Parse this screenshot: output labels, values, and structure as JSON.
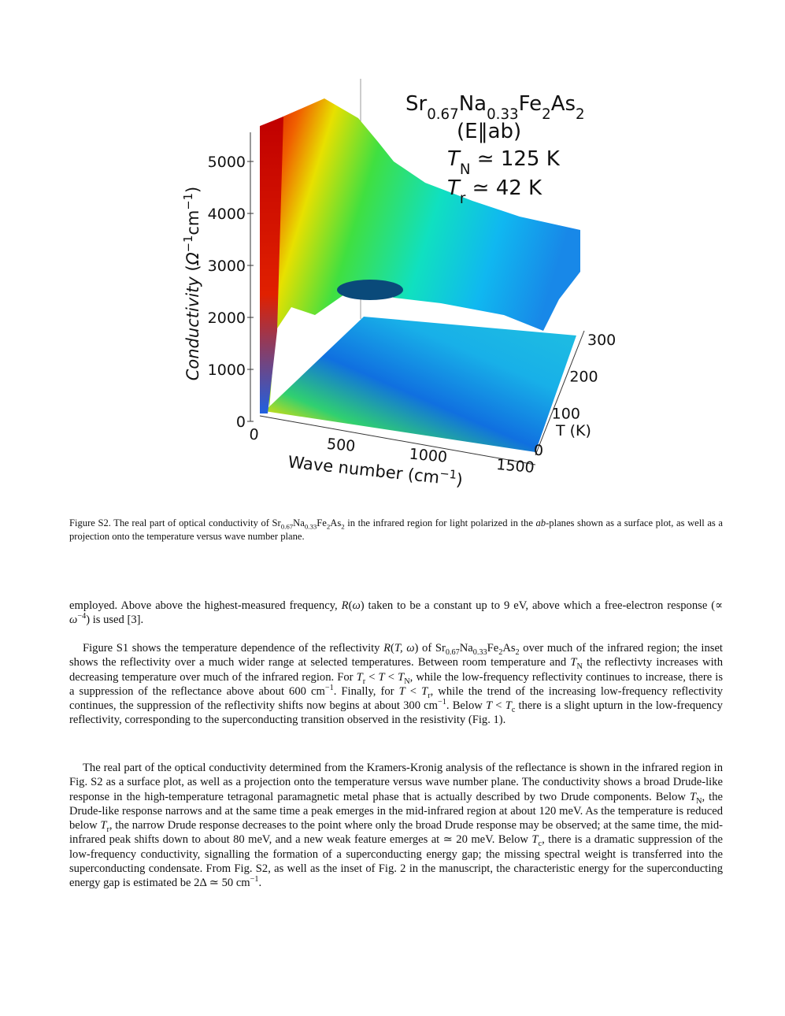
{
  "figure": {
    "annotation": [
      [
        "Sr",
        {
          "sub": "0.67"
        },
        "Na",
        {
          "sub": "0.33"
        },
        "Fe",
        {
          "sub": "2"
        },
        "As",
        {
          "sub": "2"
        }
      ],
      [
        "(E‖ab)"
      ],
      [
        {
          "i": "T"
        },
        {
          "sub": "N"
        },
        " ≃ 125 K"
      ],
      [
        {
          "i": "T"
        },
        {
          "sub": "r"
        },
        " ≃ 42 K"
      ]
    ],
    "z_axis": {
      "label": [
        {
          "i": "Conductivity"
        },
        " (",
        {
          "i": "Ω"
        },
        {
          "sup": "−1"
        },
        "cm",
        {
          "sup": "−1"
        },
        ")"
      ],
      "ticks": [
        0,
        1000,
        2000,
        3000,
        4000,
        5000
      ]
    },
    "x_axis": {
      "label": [
        "Wave number (cm",
        {
          "sup": "−1"
        },
        ")"
      ],
      "ticks": [
        0,
        500,
        1000,
        1500
      ]
    },
    "y_axis": {
      "label": [
        "T (K)"
      ],
      "ticks": [
        0,
        100,
        200,
        300
      ]
    }
  },
  "caption": [
    "Figure S2. The real part of optical conductivity of Sr",
    {
      "sub": "0.67"
    },
    "Na",
    {
      "sub": "0.33"
    },
    "Fe",
    {
      "sub": "2"
    },
    "As",
    {
      "sub": "2"
    },
    " in the infrared region for light polarized in the ",
    {
      "i": "ab"
    },
    "-planes shown as a surface plot, as well as a projection onto the temperature versus wave number plane."
  ],
  "paragraphs": [
    [
      "employed. Above above the highest-measured frequency, ",
      {
        "i": "R"
      },
      "(",
      {
        "i": "ω"
      },
      ") taken to be a constant up to 9 eV, above which a free-electron response (∝ ",
      {
        "i": "ω"
      },
      {
        "sup": "−4"
      },
      ") is used [3]."
    ],
    [
      "Figure S1 shows the temperature dependence of the reflectivity ",
      {
        "i": "R"
      },
      "(",
      {
        "i": "T, ω"
      },
      ") of Sr",
      {
        "sub": "0.67"
      },
      "Na",
      {
        "sub": "0.33"
      },
      "Fe",
      {
        "sub": "2"
      },
      "As",
      {
        "sub": "2"
      },
      " over much of the infrared region; the inset shows the reflectivity over a much wider range at selected temperatures. Between room temperature and ",
      {
        "i": "T"
      },
      {
        "sub": "N"
      },
      " the reflectivty increases with decreasing temperature over much of the infrared region. For ",
      {
        "i": "T"
      },
      {
        "sub": "r"
      },
      " < ",
      {
        "i": "T"
      },
      " < ",
      {
        "i": "T"
      },
      {
        "sub": "N"
      },
      ", while the low-frequency reflectivity continues to increase, there is a suppression of the reflectance above about 600 cm",
      {
        "sup": "−1"
      },
      ". Finally, for ",
      {
        "i": "T"
      },
      " < ",
      {
        "i": "T"
      },
      {
        "sub": "r"
      },
      ", while the trend of the increasing low-frequency reflectivity continues, the suppression of the reflectivity shifts now begins at about 300 cm",
      {
        "sup": "−1"
      },
      ". Below ",
      {
        "i": "T"
      },
      " < ",
      {
        "i": "T"
      },
      {
        "sub": "c"
      },
      " there is a slight upturn in the low-frequency reflectivity, corresponding to the superconducting transition observed in the resistivity (Fig. 1)."
    ],
    [
      "The real part of the optical conductivity determined from the Kramers-Kronig analysis of the reflectance is shown in the infrared region in Fig. S2 as a surface plot, as well as a projection onto the temperature versus wave number plane. The conductivity shows a broad Drude-like response in the high-temperature tetragonal paramagnetic metal phase that is actually described by two Drude components. Below ",
      {
        "i": "T"
      },
      {
        "sub": "N"
      },
      ", the Drude-like response narrows and at the same time a peak emerges in the mid-infrared region at about 120 meV. As the temperature is reduced below ",
      {
        "i": "T"
      },
      {
        "sub": "r"
      },
      ", the narrow Drude response decreases to the point where only the broad Drude response may be observed; at the same time, the mid-infrared peak shifts down to about 80 meV, and a new weak feature emerges at ≃ 20 meV. Below ",
      {
        "i": "T"
      },
      {
        "sub": "c"
      },
      ", there is a dramatic suppression of the low-frequency conductivity, signalling the formation of a superconducting energy gap; the missing spectral weight is transferred into the superconducting condensate. From Fig. S2, as well as the inset of Fig. 2 in the manuscript, the characteristic energy for the superconducting energy gap is estimated be 2Δ ≃ 50 cm",
      {
        "sup": "−1"
      },
      "."
    ]
  ]
}
